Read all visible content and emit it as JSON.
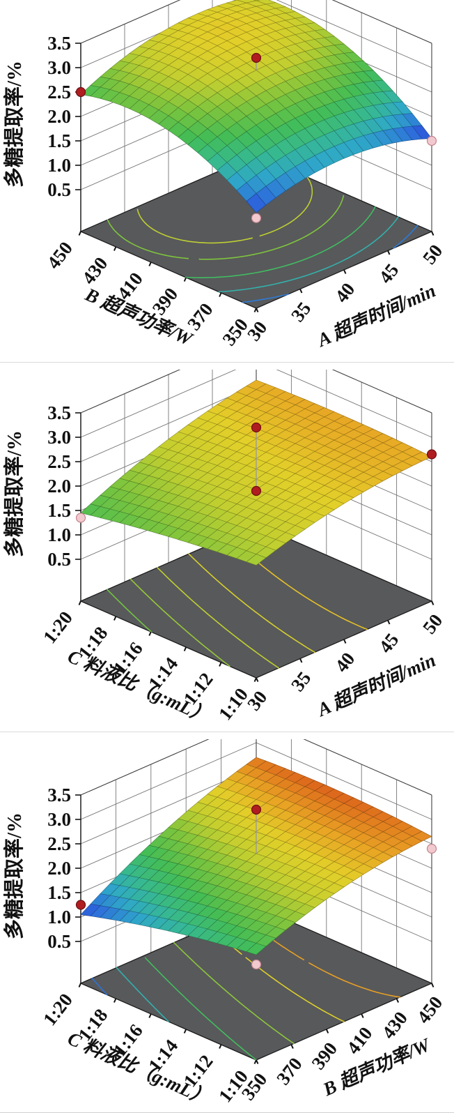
{
  "page": {
    "background": "#ffffff"
  },
  "style": {
    "floor_color": "#58595b",
    "wall_grid_color": "#757575",
    "frame_color": "#3f3f3f",
    "axis_color": "#161616",
    "stem_color": "#9b9b9b",
    "point_above": {
      "fill": "#b01d20",
      "stroke": "#6d0f12"
    },
    "point_below": {
      "fill": "#f2c9cf",
      "stroke": "#c2858e"
    },
    "colormap": [
      {
        "t": 0.0,
        "c": "#2b3fd8"
      },
      {
        "t": 0.1,
        "c": "#2e6fdb"
      },
      {
        "t": 0.22,
        "c": "#2fa8c8"
      },
      {
        "t": 0.33,
        "c": "#37b98f"
      },
      {
        "t": 0.45,
        "c": "#44bd55"
      },
      {
        "t": 0.57,
        "c": "#7cc43e"
      },
      {
        "t": 0.68,
        "c": "#c2cf30"
      },
      {
        "t": 0.78,
        "c": "#e3cf29"
      },
      {
        "t": 0.86,
        "c": "#e8a424"
      },
      {
        "t": 0.93,
        "c": "#df701d"
      },
      {
        "t": 1.0,
        "c": "#c82c15"
      }
    ]
  },
  "chart_data": [
    {
      "type": "surface3d",
      "name": "extraction-rate-vs-time-and-power",
      "z_axis": {
        "label": "多糖提取率/%",
        "min": 0.5,
        "max": 3.5,
        "ticks": [
          "0.5",
          "1.0",
          "1.5",
          "2.0",
          "2.5",
          "3.0",
          "3.5"
        ]
      },
      "right_axis": {
        "label": "A 超声时间/min",
        "ticks": [
          "30",
          "35",
          "40",
          "45",
          "50"
        ]
      },
      "left_axis": {
        "label": "B 超声功率/W",
        "ticks": [
          "350",
          "370",
          "390",
          "410",
          "430",
          "450"
        ]
      },
      "surface_model": {
        "b0": 2.95,
        "bx": 0.1,
        "by": 0.55,
        "bxx": -0.35,
        "byy": -0.475,
        "bxy": 0.125
      },
      "surface_corner_values": {
        "front": 1.6,
        "right": 1.55,
        "left": 2.45,
        "back": 2.9,
        "center": 2.95
      },
      "color_range": [
        1.55,
        3.55
      ],
      "contour_levels": [
        1.8,
        2.1,
        2.4,
        2.7,
        2.9
      ],
      "design_points": [
        {
          "right": -1,
          "left": 1,
          "z": 2.5,
          "style": "above"
        },
        {
          "right": 0,
          "left": 0,
          "z": 3.2,
          "style": "above",
          "stem": true
        },
        {
          "right": 1,
          "left": -1,
          "z": 1.5,
          "style": "below"
        },
        {
          "right": -1,
          "left": -1,
          "z": 1.49,
          "style": "below"
        }
      ]
    },
    {
      "type": "surface3d",
      "name": "extraction-rate-vs-time-and-ratio",
      "z_axis": {
        "label": "多糖提取率/%",
        "min": 0.5,
        "max": 3.5,
        "ticks": [
          "0.5",
          "1.0",
          "1.5",
          "2.0",
          "2.5",
          "3.0",
          "3.5"
        ]
      },
      "right_axis": {
        "label": "A 超声时间/min",
        "ticks": [
          "30",
          "35",
          "40",
          "45",
          "50"
        ]
      },
      "left_axis": {
        "label": "C 料液比（g:mL）",
        "ticks": [
          "1:10",
          "1:12",
          "1:14",
          "1:16",
          "1:18",
          "1:20"
        ]
      },
      "surface_model": {
        "b0": 2.35,
        "bx": 0.45,
        "by": -0.125,
        "bxx": -0.15,
        "byy": -0.05,
        "bxy": 0.125
      },
      "surface_corner_values": {
        "front": 1.95,
        "right": 2.6,
        "left": 1.45,
        "back": 2.6,
        "center": 2.35
      },
      "color_range": [
        0.0,
        3.1
      ],
      "contour_levels": [
        1.7,
        1.9,
        2.1,
        2.3,
        2.5
      ],
      "design_points": [
        {
          "right": 0,
          "left": 0,
          "z": 3.2,
          "style": "above",
          "stem": true
        },
        {
          "right": 0,
          "left": 0,
          "z": 1.9,
          "style": "above",
          "stem": true
        },
        {
          "right": 1,
          "left": -1,
          "z": 2.65,
          "style": "above"
        },
        {
          "right": -1,
          "left": 1,
          "z": 1.35,
          "style": "below"
        }
      ]
    },
    {
      "type": "surface3d",
      "name": "extraction-rate-vs-power-and-ratio",
      "z_axis": {
        "label": "多糖提取率/%",
        "min": 0.5,
        "max": 3.5,
        "ticks": [
          "0.5",
          "1.0",
          "1.5",
          "2.0",
          "2.5",
          "3.0",
          "3.5"
        ]
      },
      "right_axis": {
        "label": "B 超声功率/W",
        "ticks": [
          "350",
          "370",
          "390",
          "410",
          "430",
          "450"
        ]
      },
      "left_axis": {
        "label": "C 料液比（g:mL）",
        "ticks": [
          "1:10",
          "1:12",
          "1:14",
          "1:16",
          "1:18",
          "1:20"
        ]
      },
      "surface_model": {
        "b0": 2.3,
        "bx": 0.625,
        "by": -0.175,
        "bxx": -0.175,
        "byy": -0.075,
        "bxy": 0.2
      },
      "surface_corner_values": {
        "front": 1.8,
        "right": 2.65,
        "left": 1.05,
        "back": 2.7,
        "center": 2.3
      },
      "color_range": [
        1.0,
        2.85
      ],
      "contour_levels": [
        1.2,
        1.5,
        1.8,
        2.1,
        2.4,
        2.6
      ],
      "design_points": [
        {
          "right": 0,
          "left": 0,
          "z": 3.2,
          "style": "above",
          "stem": true
        },
        {
          "right": -1,
          "left": 1,
          "z": 1.25,
          "style": "above"
        },
        {
          "right": 1,
          "left": -1,
          "z": 2.4,
          "style": "below"
        },
        {
          "right": -1,
          "left": -1,
          "z": 1.6,
          "style": "below"
        }
      ]
    }
  ]
}
